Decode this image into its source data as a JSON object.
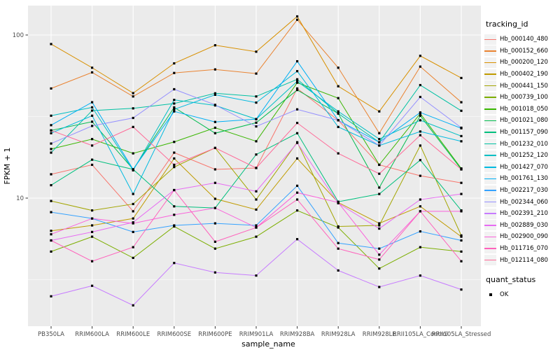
{
  "style": {
    "panel_bg": "#EBEBEB",
    "grid_color": "#FFFFFF",
    "tick_text_color": "#4D4D4D",
    "axis_title_color": "#000000",
    "point_color": "#000000",
    "legend_key_bg": "#F2F2F2"
  },
  "chart_data": {
    "type": "line",
    "title": "",
    "xlabel": "sample_name",
    "ylabel": "FPKM + 1",
    "y_scale": "log10",
    "ylim": [
      1.6,
      150
    ],
    "y_ticks": [
      10,
      100
    ],
    "y_minor_ticks": [
      3.162,
      31.623
    ],
    "grid": "on",
    "legend_position": "right",
    "legend_title": "tracking_id",
    "point_marker": "black-square",
    "categories": [
      "PB350LA",
      "RRIM600LA",
      "RRIM600LE",
      "RRIM600SE",
      "RRIM600PE",
      "RRIM901LA",
      "RRIM928BA",
      "RRIM928LA",
      "RRIM928LE",
      "RRII105LA_Control",
      "RRII105LA_Stressed"
    ],
    "series": [
      {
        "name": "Hb_000140_480",
        "color": "#F8766D",
        "values": [
          14,
          16,
          8.3,
          19,
          15,
          15.3,
          47,
          30,
          16,
          13.7,
          12.4
        ]
      },
      {
        "name": "Hb_000152_660",
        "color": "#EA8331",
        "values": [
          47,
          59,
          42,
          58.5,
          61.5,
          58,
          124,
          63,
          25,
          64,
          38.7
        ]
      },
      {
        "name": "Hb_000200_120",
        "color": "#D89000",
        "values": [
          88,
          63,
          44,
          67,
          86.5,
          79,
          130,
          48.5,
          34,
          74.5,
          54.5
        ]
      },
      {
        "name": "Hb_000402_190",
        "color": "#C09B00",
        "values": [
          6.3,
          6.8,
          7.5,
          17.5,
          9.9,
          8.5,
          17.5,
          9.4,
          7.0,
          8.9,
          5.8
        ]
      },
      {
        "name": "Hb_000441_150",
        "color": "#A3A500",
        "values": [
          9.6,
          8.4,
          9.2,
          15.5,
          20.3,
          9.8,
          22,
          6.7,
          6.8,
          21,
          5.9
        ]
      },
      {
        "name": "Hb_000739_100",
        "color": "#7CAE00",
        "values": [
          4.7,
          5.8,
          4.3,
          6.7,
          4.9,
          5.8,
          8.4,
          6.6,
          3.7,
          5.0,
          4.7
        ]
      },
      {
        "name": "Hb_001018_050",
        "color": "#39B600",
        "values": [
          20,
          23,
          18.8,
          22.1,
          27,
          22.3,
          51,
          41,
          16,
          33,
          15.2
        ]
      },
      {
        "name": "Hb_001021_080",
        "color": "#00BB4E",
        "values": [
          26,
          29.4,
          15,
          36,
          25,
          29,
          46,
          33,
          11.6,
          32,
          15
        ]
      },
      {
        "name": "Hb_001157_090",
        "color": "#00BF7D",
        "values": [
          12,
          17.2,
          15,
          8.9,
          8.7,
          18.5,
          25,
          9.5,
          10.6,
          17.1,
          8.4
        ]
      },
      {
        "name": "Hb_001232_010",
        "color": "#00C1A3",
        "values": [
          19,
          34.4,
          35.5,
          38,
          43.9,
          42,
          53.5,
          33,
          22,
          49.3,
          34.3
        ]
      },
      {
        "name": "Hb_001252_120",
        "color": "#00BFC4",
        "values": [
          32,
          36,
          14.8,
          40,
          37,
          30.5,
          52,
          34,
          23,
          30,
          24
        ]
      },
      {
        "name": "Hb_001427_070",
        "color": "#00BAE0",
        "values": [
          25,
          32,
          10.6,
          35,
          43,
          38.5,
          60,
          27.3,
          21,
          25.6,
          22.3
        ]
      },
      {
        "name": "Hb_001761_130",
        "color": "#00B0F6",
        "values": [
          28,
          38.7,
          15,
          34,
          29.3,
          30.5,
          69,
          30,
          22,
          33.5,
          26.8
        ]
      },
      {
        "name": "Hb_002217_030",
        "color": "#35A2FF",
        "values": [
          8.2,
          7.5,
          6.2,
          6.8,
          7.0,
          6.8,
          11.9,
          5.3,
          4.9,
          6.25,
          5.5
        ]
      },
      {
        "name": "Hb_002344_060",
        "color": "#9590FF",
        "values": [
          21.6,
          27.7,
          31,
          46.5,
          37.3,
          27.5,
          35,
          30,
          21,
          41.7,
          27
        ]
      },
      {
        "name": "Hb_002391_210",
        "color": "#C77CFF",
        "values": [
          2.5,
          2.9,
          2.2,
          4.0,
          3.5,
          3.35,
          5.6,
          3.6,
          2.85,
          3.35,
          2.75
        ]
      },
      {
        "name": "Hb_002889_030",
        "color": "#E76BF3",
        "values": [
          5.5,
          6.2,
          7.1,
          11.2,
          12.4,
          11,
          21.8,
          9.3,
          6.5,
          9.8,
          10.6
        ]
      },
      {
        "name": "Hb_002900_090",
        "color": "#FA62DB",
        "values": [
          6.0,
          7.5,
          7.0,
          7.9,
          8.7,
          6.6,
          10.8,
          9.4,
          4.5,
          8.3,
          8.3
        ]
      },
      {
        "name": "Hb_011716_070",
        "color": "#FF62BC",
        "values": [
          5.5,
          4.1,
          5.0,
          11.2,
          5.4,
          6.6,
          9.8,
          4.9,
          4.2,
          8.3,
          4.1
        ]
      },
      {
        "name": "Hb_012114_080",
        "color": "#FF6A98",
        "values": [
          26,
          21,
          27.3,
          16,
          20.3,
          15.3,
          28.9,
          18.8,
          14.1,
          24.3,
          15
        ]
      }
    ],
    "quant_legend": {
      "title": "quant_status",
      "items": [
        {
          "label": "OK",
          "marker": "black-square"
        }
      ]
    }
  }
}
